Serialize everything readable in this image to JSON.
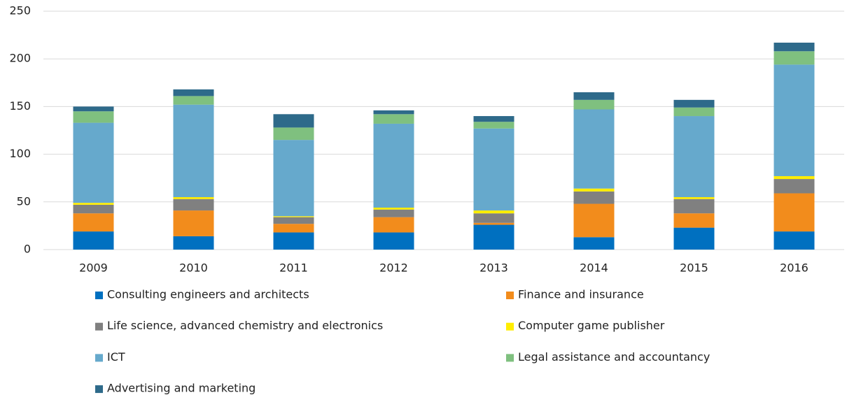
{
  "chart_data": {
    "type": "stacked_bar",
    "categories": [
      "2009",
      "2010",
      "2011",
      "2012",
      "2013",
      "2014",
      "2015",
      "2016"
    ],
    "series": [
      {
        "name": "Consulting engineers and architects",
        "color": "#0070c0",
        "values": [
          19,
          14,
          18,
          18,
          26,
          13,
          23,
          19
        ]
      },
      {
        "name": "Finance and insurance",
        "color": "#f28c1c",
        "values": [
          19,
          27,
          9,
          16,
          2,
          35,
          15,
          40
        ]
      },
      {
        "name": "Life science, advanced chemistry and electronics",
        "color": "#808080",
        "values": [
          9,
          12,
          7,
          8,
          10,
          13,
          15,
          15
        ]
      },
      {
        "name": "Computer game publisher",
        "color": "#ffed00",
        "values": [
          2,
          2,
          1,
          2,
          3,
          3,
          2,
          3
        ]
      },
      {
        "name": "ICT",
        "color": "#66a9cc",
        "values": [
          84,
          97,
          80,
          88,
          86,
          83,
          85,
          117
        ]
      },
      {
        "name": "Legal assistance and accountancy",
        "color": "#7fc07f",
        "values": [
          12,
          9,
          13,
          10,
          7,
          10,
          9,
          14
        ]
      },
      {
        "name": "Advertising and marketing",
        "color": "#2e6a8a",
        "values": [
          5,
          7,
          14,
          4,
          6,
          8,
          8,
          9
        ]
      }
    ],
    "ylim": [
      0,
      250
    ],
    "yticks": [
      0,
      50,
      100,
      150,
      200,
      250
    ],
    "grid": true,
    "legend": "bottom"
  }
}
